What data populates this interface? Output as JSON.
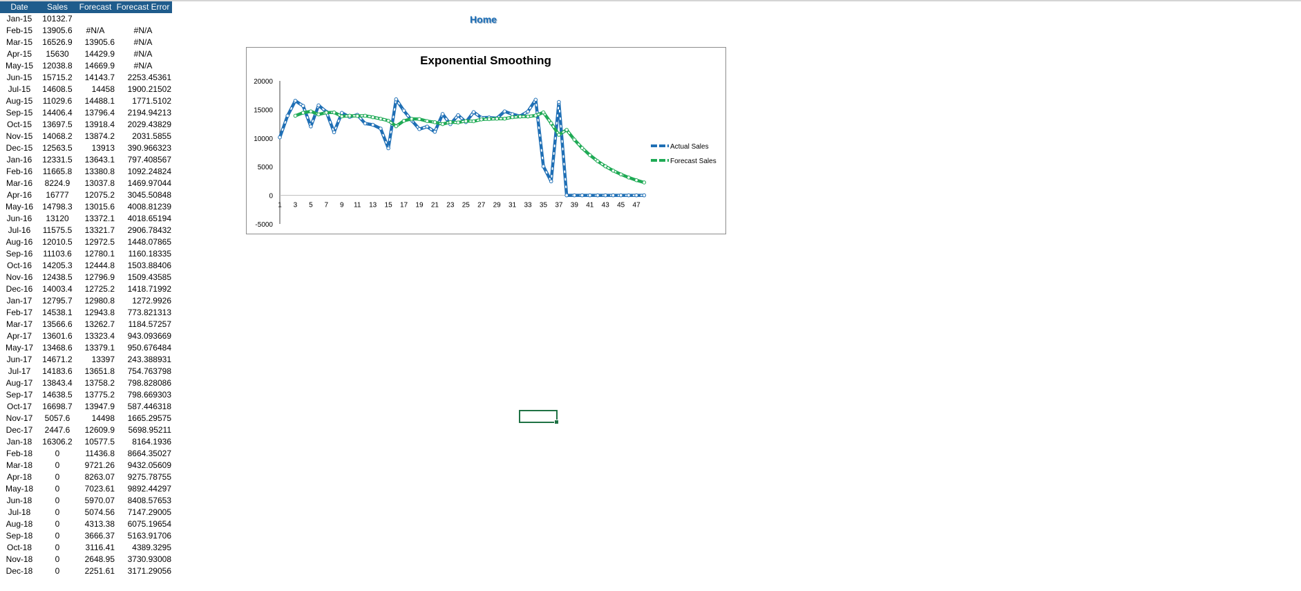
{
  "home_link": "Home",
  "table": {
    "headers": [
      "Date",
      "Sales",
      "Forecast",
      "Forecast Error"
    ],
    "rows": [
      [
        "Jan-15",
        "10132.7",
        "",
        ""
      ],
      [
        "Feb-15",
        "13905.6",
        "#N/A",
        "#N/A"
      ],
      [
        "Mar-15",
        "16526.9",
        "13905.6",
        "#N/A"
      ],
      [
        "Apr-15",
        "15630",
        "14429.9",
        "#N/A"
      ],
      [
        "May-15",
        "12038.8",
        "14669.9",
        "#N/A"
      ],
      [
        "Jun-15",
        "15715.2",
        "14143.7",
        "2253.45361"
      ],
      [
        "Jul-15",
        "14608.5",
        "14458",
        "1900.21502"
      ],
      [
        "Aug-15",
        "11029.6",
        "14488.1",
        "1771.5102"
      ],
      [
        "Sep-15",
        "14406.4",
        "13796.4",
        "2194.94213"
      ],
      [
        "Oct-15",
        "13697.5",
        "13918.4",
        "2029.43829"
      ],
      [
        "Nov-15",
        "14068.2",
        "13874.2",
        "2031.5855"
      ],
      [
        "Dec-15",
        "12563.5",
        "13913",
        "390.966323"
      ],
      [
        "Jan-16",
        "12331.5",
        "13643.1",
        "797.408567"
      ],
      [
        "Feb-16",
        "11665.8",
        "13380.8",
        "1092.24824"
      ],
      [
        "Mar-16",
        "8224.9",
        "13037.8",
        "1469.97044"
      ],
      [
        "Apr-16",
        "16777",
        "12075.2",
        "3045.50848"
      ],
      [
        "May-16",
        "14798.3",
        "13015.6",
        "4008.81239"
      ],
      [
        "Jun-16",
        "13120",
        "13372.1",
        "4018.65194"
      ],
      [
        "Jul-16",
        "11575.5",
        "13321.7",
        "2906.78432"
      ],
      [
        "Aug-16",
        "12010.5",
        "12972.5",
        "1448.07865"
      ],
      [
        "Sep-16",
        "11103.6",
        "12780.1",
        "1160.18335"
      ],
      [
        "Oct-16",
        "14205.3",
        "12444.8",
        "1503.88406"
      ],
      [
        "Nov-16",
        "12438.5",
        "12796.9",
        "1509.43585"
      ],
      [
        "Dec-16",
        "14003.4",
        "12725.2",
        "1418.71992"
      ],
      [
        "Jan-17",
        "12795.7",
        "12980.8",
        "1272.9926"
      ],
      [
        "Feb-17",
        "14538.1",
        "12943.8",
        "773.821313"
      ],
      [
        "Mar-17",
        "13566.6",
        "13262.7",
        "1184.57257"
      ],
      [
        "Apr-17",
        "13601.6",
        "13323.4",
        "943.093669"
      ],
      [
        "May-17",
        "13468.6",
        "13379.1",
        "950.676484"
      ],
      [
        "Jun-17",
        "14671.2",
        "13397",
        "243.388931"
      ],
      [
        "Jul-17",
        "14183.6",
        "13651.8",
        "754.763798"
      ],
      [
        "Aug-17",
        "13843.4",
        "13758.2",
        "798.828086"
      ],
      [
        "Sep-17",
        "14638.5",
        "13775.2",
        "798.669303"
      ],
      [
        "Oct-17",
        "16698.7",
        "13947.9",
        "587.446318"
      ],
      [
        "Nov-17",
        "5057.6",
        "14498",
        "1665.29575"
      ],
      [
        "Dec-17",
        "2447.6",
        "12609.9",
        "5698.95211"
      ],
      [
        "Jan-18",
        "16306.2",
        "10577.5",
        "8164.1936"
      ],
      [
        "Feb-18",
        "0",
        "11436.8",
        "8664.35027"
      ],
      [
        "Mar-18",
        "0",
        "9721.26",
        "9432.05609"
      ],
      [
        "Apr-18",
        "0",
        "8263.07",
        "9275.78755"
      ],
      [
        "May-18",
        "0",
        "7023.61",
        "9892.44297"
      ],
      [
        "Jun-18",
        "0",
        "5970.07",
        "8408.57653"
      ],
      [
        "Jul-18",
        "0",
        "5074.56",
        "7147.29005"
      ],
      [
        "Aug-18",
        "0",
        "4313.38",
        "6075.19654"
      ],
      [
        "Sep-18",
        "0",
        "3666.37",
        "5163.91706"
      ],
      [
        "Oct-18",
        "0",
        "3116.41",
        "4389.3295"
      ],
      [
        "Nov-18",
        "0",
        "2648.95",
        "3730.93008"
      ],
      [
        "Dec-18",
        "0",
        "2251.61",
        "3171.29056"
      ]
    ]
  },
  "chart_data": {
    "type": "line",
    "title": "Exponential Smoothing",
    "ylim": [
      -5000,
      20000
    ],
    "y_ticks": [
      "20000",
      "15000",
      "10000",
      "5000",
      "0",
      "-5000"
    ],
    "x_ticks": [
      "1",
      "3",
      "5",
      "7",
      "9",
      "11",
      "13",
      "15",
      "17",
      "19",
      "21",
      "23",
      "25",
      "27",
      "29",
      "31",
      "33",
      "35",
      "37",
      "39",
      "41",
      "43",
      "45",
      "47"
    ],
    "legend_position": "right",
    "series": [
      {
        "name": "Actual Sales",
        "color": "#1f6fb5",
        "values": [
          10132.7,
          13905.6,
          16526.9,
          15630,
          12038.8,
          15715.2,
          14608.5,
          11029.6,
          14406.4,
          13697.5,
          14068.2,
          12563.5,
          12331.5,
          11665.8,
          8224.9,
          16777,
          14798.3,
          13120,
          11575.5,
          12010.5,
          11103.6,
          14205.3,
          12438.5,
          14003.4,
          12795.7,
          14538.1,
          13566.6,
          13601.6,
          13468.6,
          14671.2,
          14183.6,
          13843.4,
          14638.5,
          16698.7,
          5057.6,
          2447.6,
          16306.2,
          0,
          0,
          0,
          0,
          0,
          0,
          0,
          0,
          0,
          0,
          0
        ]
      },
      {
        "name": "Forecast Sales",
        "color": "#1faa55",
        "values": [
          null,
          null,
          13905.6,
          14429.9,
          14669.9,
          14143.7,
          14458,
          14488.1,
          13796.4,
          13918.4,
          13874.2,
          13913,
          13643.1,
          13380.8,
          13037.8,
          12075.2,
          13015.6,
          13372.1,
          13321.7,
          12972.5,
          12780.1,
          12444.8,
          12796.9,
          12725.2,
          12980.8,
          12943.8,
          13262.7,
          13323.4,
          13379.1,
          13397,
          13651.8,
          13758.2,
          13775.2,
          13947.9,
          14498,
          12609.9,
          10577.5,
          11436.8,
          9721.26,
          8263.07,
          7023.61,
          5970.07,
          5074.56,
          4313.38,
          3666.37,
          3116.41,
          2648.95,
          2251.61
        ]
      }
    ]
  }
}
